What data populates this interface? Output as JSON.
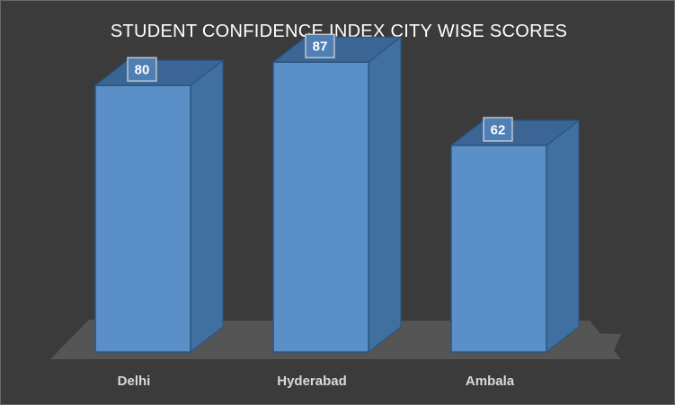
{
  "chart_data": {
    "type": "bar",
    "title": "STUDENT CONFIDENCE INDEX CITY WISE SCORES",
    "categories": [
      "Delhi",
      "Hyderabad",
      "Ambala"
    ],
    "values": [
      80,
      87,
      62
    ],
    "xlabel": "",
    "ylabel": "",
    "ylim": [
      0,
      100
    ],
    "grid": false,
    "legend": "none",
    "data_labels": true,
    "style": "3d-column"
  },
  "colors": {
    "background": "#3b3b3b",
    "floor": "#555555",
    "bar_front": "#5b8fc7",
    "bar_side": "#40709f",
    "bar_top": "#3a6594",
    "bar_edge": "#2b5580",
    "label_box_fill": "#4f7fb3",
    "label_box_border": "#dcdcdc"
  }
}
